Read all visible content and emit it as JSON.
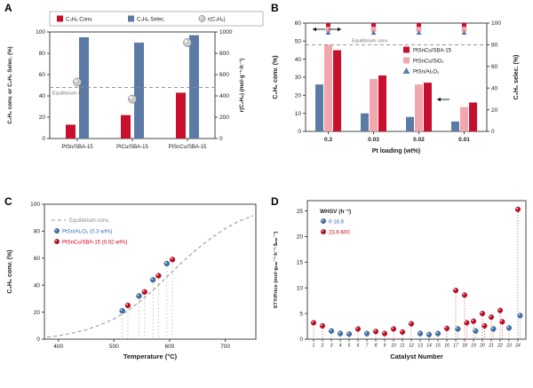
{
  "figure": {
    "panel_labels": [
      "A",
      "B",
      "C",
      "D"
    ],
    "background": "#ffffff"
  },
  "colors": {
    "red": "#c8102e",
    "blue": "#5b7ba6",
    "pink": "#f2a6ad",
    "gray_sphere": "#c9c9c9",
    "dashed_gray": "#8a8a8a",
    "scatter_blue": "#3a6fb5",
    "scatter_red": "#d0021b"
  },
  "chart_data": [
    {
      "id": "A",
      "type": "bar",
      "categories": [
        "PtSn/SBA-15",
        "PtCu/SBA-15",
        "PtSnCu/SBA-15"
      ],
      "ylabel_left": "C₃H₈ conv. or C₃H₆ Selec. (%)",
      "ylabel_right": "r(C₃H₈) (mol·g⁻¹·h⁻¹)",
      "ylim_left": [
        0,
        100
      ],
      "yticks_left": [
        0,
        20,
        40,
        60,
        80,
        100
      ],
      "ylim_right": [
        0,
        1000
      ],
      "yticks_right": [
        0,
        200,
        400,
        600,
        800,
        1000
      ],
      "equilibrium": {
        "value": 48,
        "label": "Equilibrium conv."
      },
      "series": [
        {
          "name": "C₃H₈ Conv.",
          "kind": "bar",
          "color": "#c8102e",
          "values": [
            13,
            22,
            43
          ]
        },
        {
          "name": "C₃H₆ Selec.",
          "kind": "bar",
          "color": "#5b7ba6",
          "values": [
            95,
            90,
            97
          ]
        },
        {
          "name": "r(C₃H₈)",
          "kind": "sphere",
          "color": "#c9c9c9",
          "axis": "right",
          "values": [
            530,
            370,
            900
          ]
        }
      ]
    },
    {
      "id": "B",
      "type": "bar",
      "xlabel": "Pt loading (wt%)",
      "categories": [
        "0.3",
        "0.03",
        "0.02",
        "0.01"
      ],
      "ylabel_left": "C₃H₈ conv. (%)",
      "ylabel_right": "C₃H₆ selec. (%)",
      "ylim_left": [
        0,
        60
      ],
      "yticks_left": [
        0,
        10,
        20,
        30,
        40,
        50,
        60
      ],
      "ylim_right": [
        0,
        100
      ],
      "yticks_right": [
        0,
        20,
        40,
        60,
        80,
        100
      ],
      "equilibrium": {
        "value": 48,
        "label": "Equilibrium conv."
      },
      "series": [
        {
          "name": "PtSn/Al₂O₃",
          "marker": "triangle",
          "color": "#5b7ba6",
          "values": [
            26,
            10,
            8,
            5.5
          ],
          "selectivity": [
            91,
            91,
            91,
            91
          ]
        },
        {
          "name": "PtSnCu/SiO₂",
          "marker": "square",
          "color": "#f2a6ad",
          "values": [
            48,
            29,
            26,
            13.5
          ],
          "selectivity": [
            94.5,
            94.5,
            94.5,
            94.5
          ]
        },
        {
          "name": "PtSnCu/SBA-15",
          "marker": "square",
          "color": "#c8102e",
          "values": [
            45,
            31,
            27,
            16
          ],
          "selectivity": [
            98,
            98,
            98,
            98
          ]
        }
      ],
      "legend_order": [
        2,
        1,
        0
      ]
    },
    {
      "id": "C",
      "type": "scatter-line",
      "xlabel": "Temperature (°C)",
      "ylabel": "C₃H₈ conv. (%)",
      "xlim": [
        375,
        755
      ],
      "xticks": [
        400,
        500,
        600,
        700
      ],
      "ylim": [
        0,
        100
      ],
      "yticks": [
        0,
        20,
        40,
        60,
        80,
        100
      ],
      "equilibrium_curve": {
        "label": "Equilibrium conv.",
        "color": "#9a9a9a",
        "x": [
          380,
          400,
          425,
          450,
          475,
          500,
          525,
          550,
          575,
          600,
          625,
          650,
          675,
          700,
          725,
          750
        ],
        "y": [
          1.5,
          2.5,
          4.5,
          7,
          10.5,
          15,
          21,
          29,
          38,
          48,
          58,
          67,
          75,
          82,
          87.5,
          91.5
        ]
      },
      "series": [
        {
          "name": "PtSn/Al₂O₃ (0.3 wt%)",
          "color": "#3a6fb5",
          "x": [
            515,
            545,
            570,
            595
          ],
          "y": [
            21,
            32,
            44,
            56
          ]
        },
        {
          "name": "PtSnCu/SBA-15 (0.02 wt%)",
          "color": "#d0021b",
          "x": [
            525,
            555,
            580,
            605
          ],
          "y": [
            25,
            35,
            47,
            59
          ]
        }
      ]
    },
    {
      "id": "D",
      "type": "lollipop",
      "xlabel": "Catalyst Number",
      "ylabel": "STY/Price (mol·gₙₘ⁻¹·h⁻¹·$ₙₘ⁻¹)",
      "xlim": [
        0.3,
        24.9
      ],
      "xticks": [
        1,
        2,
        3,
        4,
        5,
        6,
        7,
        8,
        9,
        10,
        11,
        12,
        13,
        14,
        15,
        16,
        17,
        18,
        19,
        20,
        21,
        22,
        23,
        24
      ],
      "ylim": [
        0,
        27
      ],
      "yticks": [
        0,
        5,
        10,
        15,
        20,
        25
      ],
      "legend_title": "WHSV (h⁻¹)",
      "series": [
        {
          "name": "6-18.8",
          "color": "#3a6fb5"
        },
        {
          "name": "23.6-600",
          "color": "#d0021b"
        }
      ],
      "points": [
        {
          "x": 1,
          "y": 3.2,
          "s": 1
        },
        {
          "x": 2,
          "y": 2.6,
          "s": 1
        },
        {
          "x": 3,
          "y": 1.6,
          "s": 0
        },
        {
          "x": 4,
          "y": 1.1,
          "s": 0
        },
        {
          "x": 5,
          "y": 1.0,
          "s": 0
        },
        {
          "x": 6,
          "y": 2.0,
          "s": 1
        },
        {
          "x": 7,
          "y": 1.1,
          "s": 0
        },
        {
          "x": 8,
          "y": 1.5,
          "s": 1
        },
        {
          "x": 9,
          "y": 1.1,
          "s": 1
        },
        {
          "x": 10,
          "y": 2.0,
          "s": 1
        },
        {
          "x": 11,
          "y": 1.4,
          "s": 1
        },
        {
          "x": 12,
          "y": 3.0,
          "s": 1
        },
        {
          "x": 13,
          "y": 1.1,
          "s": 0
        },
        {
          "x": 14,
          "y": 0.9,
          "s": 0
        },
        {
          "x": 15,
          "y": 1.1,
          "s": 0
        },
        {
          "x": 16,
          "y": 2.1,
          "s": 1
        },
        {
          "x": 17,
          "y": 9.5,
          "s": 1
        },
        {
          "x": 17,
          "y": 2.0,
          "s": 0
        },
        {
          "x": 18,
          "y": 8.6,
          "s": 1
        },
        {
          "x": 18,
          "y": 3.2,
          "s": 1
        },
        {
          "x": 19,
          "y": 3.5,
          "s": 1
        },
        {
          "x": 19,
          "y": 1.6,
          "s": 0
        },
        {
          "x": 20,
          "y": 5.0,
          "s": 1
        },
        {
          "x": 20,
          "y": 2.6,
          "s": 1
        },
        {
          "x": 21,
          "y": 4.3,
          "s": 1
        },
        {
          "x": 21,
          "y": 2.0,
          "s": 0
        },
        {
          "x": 22,
          "y": 5.6,
          "s": 1
        },
        {
          "x": 22,
          "y": 3.4,
          "s": 1
        },
        {
          "x": 23,
          "y": 2.2,
          "s": 0
        },
        {
          "x": 24,
          "y": 25.3,
          "s": 1
        },
        {
          "x": 24,
          "y": 4.6,
          "s": 0
        }
      ]
    }
  ]
}
